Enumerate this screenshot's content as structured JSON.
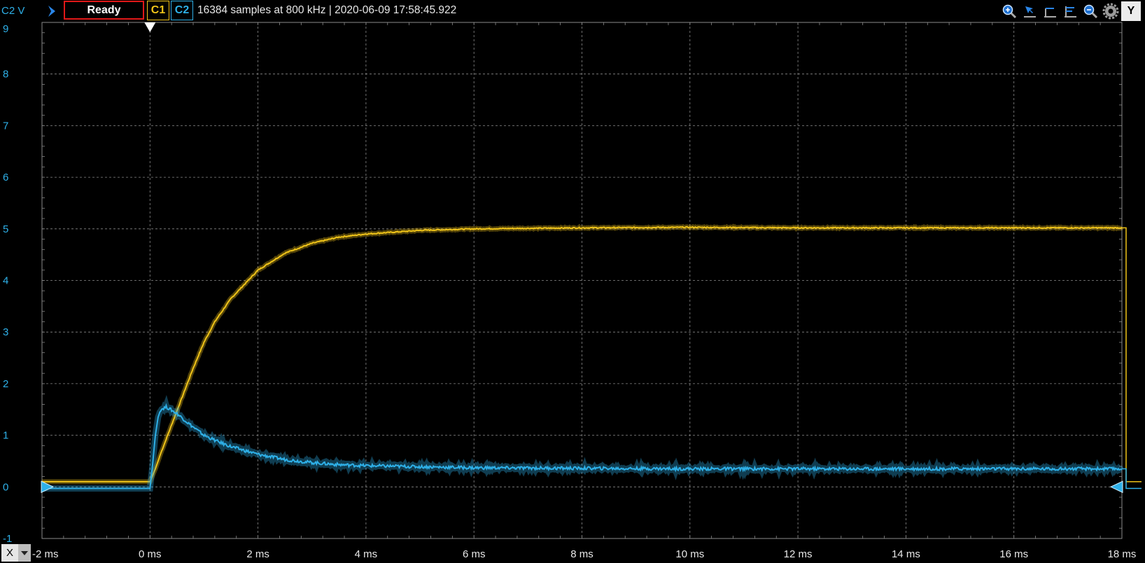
{
  "toolbar": {
    "y_axis_label": "C2 V",
    "status": "Ready",
    "channel1_label": "C1",
    "channel2_label": "C2",
    "info": "16384 samples at 800 kHz | 2020-06-09 17:58:45.922",
    "y_button": "Y",
    "icons": [
      "zoom-in-icon",
      "cursor-icon",
      "horizontal-cursor-icon",
      "vertical-cursor-icon",
      "zoom-out-icon",
      "settings-icon"
    ]
  },
  "bottom": {
    "x_button": "X"
  },
  "colors": {
    "channel1": "#f0c419",
    "channel2": "#2eb0e8",
    "status_border": "#e01818",
    "grid": "#8a8a8a",
    "background": "#000000"
  },
  "chart_data": {
    "type": "line",
    "title": "",
    "xlabel": "",
    "ylabel": "C2 V",
    "xlim": [
      -2,
      18
    ],
    "ylim": [
      -1,
      9
    ],
    "x_unit": "ms",
    "x_ticks": [
      -2,
      0,
      2,
      4,
      6,
      8,
      10,
      12,
      14,
      16,
      18
    ],
    "x_tick_labels": [
      "-2 ms",
      "0 ms",
      "2 ms",
      "4 ms",
      "6 ms",
      "8 ms",
      "10 ms",
      "12 ms",
      "14 ms",
      "16 ms",
      "18 ms"
    ],
    "y_ticks": [
      -1,
      0,
      1,
      2,
      3,
      4,
      5,
      6,
      7,
      8,
      9
    ],
    "y_tick_labels": [
      "-1",
      "0",
      "1",
      "2",
      "3",
      "4",
      "5",
      "6",
      "7",
      "8",
      "9"
    ],
    "grid": true,
    "trigger_time": 0,
    "series": [
      {
        "name": "C1",
        "color": "#f0c419",
        "x": [
          -2,
          0,
          0.1,
          0.2,
          0.4,
          0.6,
          0.8,
          1.0,
          1.2,
          1.5,
          2.0,
          2.5,
          3.0,
          3.5,
          4.0,
          5.0,
          6.0,
          8.0,
          10.0,
          12.0,
          14.0,
          16.0,
          18.0
        ],
        "y": [
          0.1,
          0.1,
          0.35,
          0.65,
          1.2,
          1.75,
          2.3,
          2.8,
          3.2,
          3.65,
          4.2,
          4.53,
          4.72,
          4.84,
          4.9,
          4.97,
          5.0,
          5.02,
          5.03,
          5.02,
          5.02,
          5.02,
          5.02
        ]
      },
      {
        "name": "C2",
        "color": "#2eb0e8",
        "x": [
          -2,
          0,
          0.05,
          0.1,
          0.15,
          0.2,
          0.3,
          0.5,
          0.75,
          1.0,
          1.25,
          1.5,
          2.0,
          2.5,
          3.0,
          3.5,
          4.0,
          5.0,
          6.0,
          8.0,
          10.0,
          12.0,
          14.0,
          16.0,
          18.0
        ],
        "y": [
          -0.03,
          -0.03,
          0.45,
          1.0,
          1.35,
          1.5,
          1.55,
          1.42,
          1.2,
          1.0,
          0.88,
          0.78,
          0.63,
          0.53,
          0.47,
          0.43,
          0.41,
          0.39,
          0.37,
          0.36,
          0.35,
          0.35,
          0.35,
          0.35,
          0.35
        ]
      }
    ]
  }
}
